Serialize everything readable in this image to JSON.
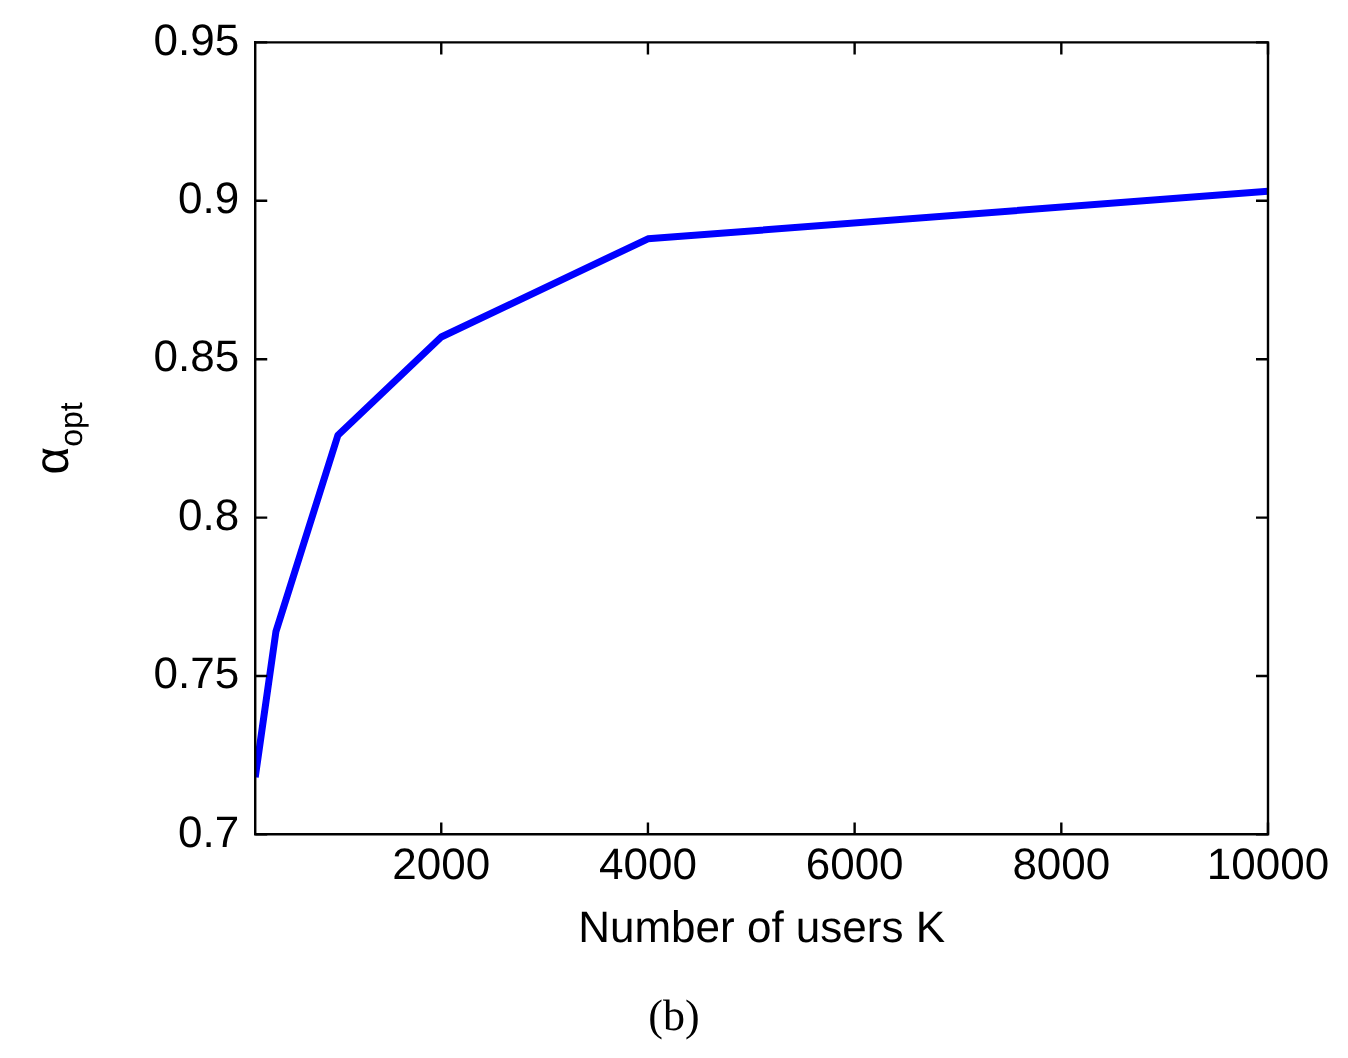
{
  "chart_data": {
    "type": "line",
    "xlabel": "Number of users K",
    "ylabel": "α$_{opt}$",
    "x": [
      200,
      400,
      1000,
      2000,
      4000,
      10000
    ],
    "series": [
      {
        "color": "#0000ff",
        "values": [
          0.718,
          0.764,
          0.826,
          0.857,
          0.888,
          0.903
        ]
      }
    ],
    "xlim": [
      200,
      10000
    ],
    "xticks": [
      2000,
      4000,
      6000,
      8000,
      10000
    ],
    "ylim": [
      0.7,
      0.95
    ],
    "yticks": [
      0.7,
      0.75,
      0.8,
      0.85,
      0.9,
      0.95
    ],
    "grid": false,
    "legend": false,
    "marker": "none",
    "line_style": "solid",
    "annotations": [
      "(b)"
    ]
  }
}
